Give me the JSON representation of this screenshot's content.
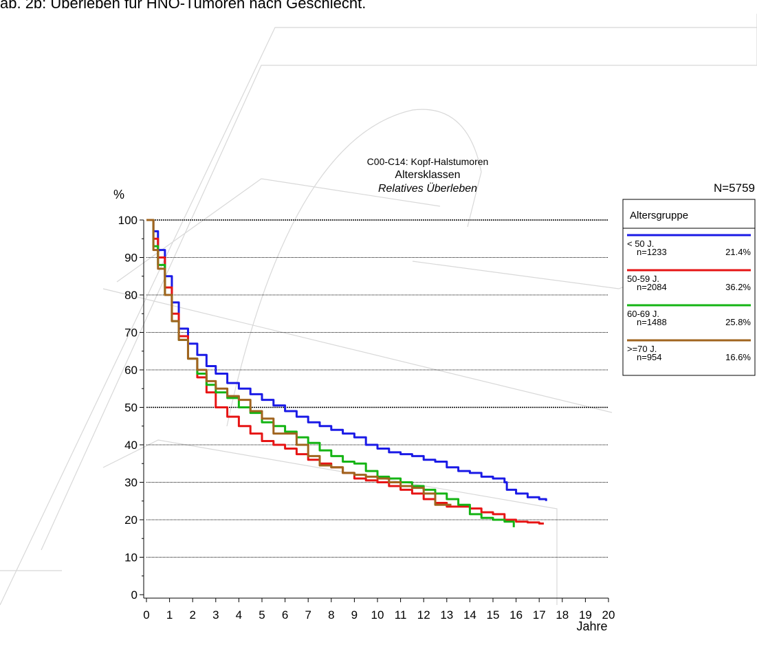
{
  "page": {
    "caption": "ab. 2b: Überleben für HNO-Tumoren nach Geschlecht."
  },
  "colors": {
    "blue": "#1a1ae6",
    "red": "#e61414",
    "green": "#14b414",
    "brown": "#a0641e",
    "grid": "#000000",
    "watermark": "#d8d8d8"
  },
  "chart_data": {
    "type": "line",
    "title_lines": [
      "C00-C14: Kopf-Halstumoren",
      "Altersklassen",
      "Relatives Überleben"
    ],
    "total_n": "N=5759",
    "ylabel": "%",
    "xlabel": "Jahre",
    "xlim": [
      0,
      20
    ],
    "ylim": [
      0,
      100
    ],
    "xticks": [
      "0",
      "1",
      "2",
      "3",
      "4",
      "5",
      "6",
      "7",
      "8",
      "9",
      "10",
      "11",
      "12",
      "13",
      "14",
      "15",
      "16",
      "17",
      "18",
      "19",
      "20"
    ],
    "yticks": [
      "0",
      "10",
      "20",
      "30",
      "40",
      "50",
      "60",
      "70",
      "80",
      "90",
      "100"
    ],
    "grid": "horizontal dotted",
    "legend": {
      "title": "Altersgruppe",
      "placement": "right",
      "entries": [
        {
          "label": "< 50 J.",
          "n": "n=1233",
          "pct": "21.4%",
          "color": "#1a1ae6"
        },
        {
          "label": "50-59 J.",
          "n": "n=2084",
          "pct": "36.2%",
          "color": "#e61414"
        },
        {
          "label": "60-69 J.",
          "n": "n=1488",
          "pct": "25.8%",
          "color": "#14b414"
        },
        {
          "label": ">=70 J.",
          "n": "n=954",
          "pct": "16.6%",
          "color": "#a0641e"
        }
      ]
    },
    "series": [
      {
        "name": "< 50 J.",
        "color": "#1a1ae6",
        "step": true,
        "points": [
          [
            0,
            100
          ],
          [
            0.3,
            97
          ],
          [
            0.5,
            92
          ],
          [
            0.8,
            85
          ],
          [
            1.1,
            78
          ],
          [
            1.4,
            71
          ],
          [
            1.8,
            67
          ],
          [
            2.2,
            64
          ],
          [
            2.6,
            61
          ],
          [
            3.0,
            59
          ],
          [
            3.5,
            56.5
          ],
          [
            4.0,
            55
          ],
          [
            4.5,
            53.5
          ],
          [
            5.0,
            52
          ],
          [
            5.5,
            50.5
          ],
          [
            6.0,
            49
          ],
          [
            6.5,
            47.5
          ],
          [
            7.0,
            46
          ],
          [
            7.5,
            45
          ],
          [
            8.0,
            44
          ],
          [
            8.5,
            43
          ],
          [
            9.0,
            42
          ],
          [
            9.5,
            40
          ],
          [
            10.0,
            39
          ],
          [
            10.5,
            38
          ],
          [
            11.0,
            37.5
          ],
          [
            11.5,
            37
          ],
          [
            12.0,
            36
          ],
          [
            12.5,
            35.5
          ],
          [
            13.0,
            34
          ],
          [
            13.5,
            33
          ],
          [
            14.0,
            32.5
          ],
          [
            14.5,
            31.5
          ],
          [
            15.0,
            31
          ],
          [
            15.5,
            30
          ],
          [
            15.6,
            28
          ],
          [
            16.0,
            27
          ],
          [
            16.5,
            26
          ],
          [
            17.0,
            25.5
          ],
          [
            17.3,
            25
          ]
        ]
      },
      {
        "name": "50-59 J.",
        "color": "#e61414",
        "step": true,
        "points": [
          [
            0,
            100
          ],
          [
            0.3,
            95
          ],
          [
            0.5,
            90
          ],
          [
            0.8,
            82
          ],
          [
            1.1,
            75
          ],
          [
            1.4,
            69
          ],
          [
            1.8,
            63
          ],
          [
            2.2,
            58
          ],
          [
            2.6,
            54
          ],
          [
            3.0,
            50
          ],
          [
            3.5,
            47.5
          ],
          [
            4.0,
            45
          ],
          [
            4.5,
            43
          ],
          [
            5.0,
            41
          ],
          [
            5.5,
            40
          ],
          [
            6.0,
            39
          ],
          [
            6.5,
            37.5
          ],
          [
            7.0,
            36
          ],
          [
            7.5,
            35
          ],
          [
            8.0,
            34
          ],
          [
            8.5,
            32.5
          ],
          [
            9.0,
            31
          ],
          [
            9.5,
            30.5
          ],
          [
            10.0,
            30
          ],
          [
            10.5,
            29
          ],
          [
            11.0,
            28
          ],
          [
            11.5,
            27
          ],
          [
            12.0,
            25.5
          ],
          [
            12.5,
            24.5
          ],
          [
            13.0,
            23.5
          ],
          [
            13.5,
            23.5
          ],
          [
            14.0,
            23
          ],
          [
            14.5,
            22
          ],
          [
            15.0,
            21.5
          ],
          [
            15.5,
            20
          ],
          [
            16.0,
            19.5
          ],
          [
            16.5,
            19.3
          ],
          [
            17.0,
            19
          ],
          [
            17.2,
            19
          ]
        ]
      },
      {
        "name": "60-69 J.",
        "color": "#14b414",
        "step": true,
        "points": [
          [
            0,
            100
          ],
          [
            0.3,
            93
          ],
          [
            0.5,
            88
          ],
          [
            0.8,
            80
          ],
          [
            1.1,
            73
          ],
          [
            1.4,
            68
          ],
          [
            1.8,
            63
          ],
          [
            2.2,
            59
          ],
          [
            2.6,
            56
          ],
          [
            3.0,
            54
          ],
          [
            3.5,
            52.5
          ],
          [
            4.0,
            50
          ],
          [
            4.5,
            48.5
          ],
          [
            5.0,
            46
          ],
          [
            5.5,
            45
          ],
          [
            6.0,
            43.5
          ],
          [
            6.5,
            42
          ],
          [
            7.0,
            40.5
          ],
          [
            7.5,
            38.5
          ],
          [
            8.0,
            37
          ],
          [
            8.5,
            35.5
          ],
          [
            9.0,
            35
          ],
          [
            9.5,
            33
          ],
          [
            10.0,
            31.5
          ],
          [
            10.5,
            31
          ],
          [
            11.0,
            30
          ],
          [
            11.5,
            29
          ],
          [
            12.0,
            28
          ],
          [
            12.5,
            27
          ],
          [
            13.0,
            25.5
          ],
          [
            13.5,
            24
          ],
          [
            14.0,
            21.5
          ],
          [
            14.5,
            20.5
          ],
          [
            15.0,
            20
          ],
          [
            15.5,
            19.5
          ],
          [
            15.9,
            18
          ]
        ]
      },
      {
        "name": ">=70 J.",
        "color": "#a0641e",
        "step": true,
        "points": [
          [
            0,
            100
          ],
          [
            0.3,
            92
          ],
          [
            0.5,
            87
          ],
          [
            0.8,
            80
          ],
          [
            1.1,
            73
          ],
          [
            1.4,
            68
          ],
          [
            1.8,
            63
          ],
          [
            2.2,
            60
          ],
          [
            2.6,
            57
          ],
          [
            3.0,
            55
          ],
          [
            3.5,
            53
          ],
          [
            4.0,
            52
          ],
          [
            4.5,
            49
          ],
          [
            5.0,
            47
          ],
          [
            5.5,
            43
          ],
          [
            6.0,
            43
          ],
          [
            6.5,
            40
          ],
          [
            7.0,
            37
          ],
          [
            7.5,
            34.5
          ],
          [
            8.0,
            34
          ],
          [
            8.5,
            32.5
          ],
          [
            9.0,
            32
          ],
          [
            9.5,
            31.5
          ],
          [
            10.0,
            31
          ],
          [
            10.5,
            30
          ],
          [
            11.0,
            29
          ],
          [
            11.5,
            28.5
          ],
          [
            12.0,
            27
          ],
          [
            12.5,
            24
          ],
          [
            13.0,
            24
          ],
          [
            13.2,
            24
          ]
        ]
      }
    ]
  }
}
